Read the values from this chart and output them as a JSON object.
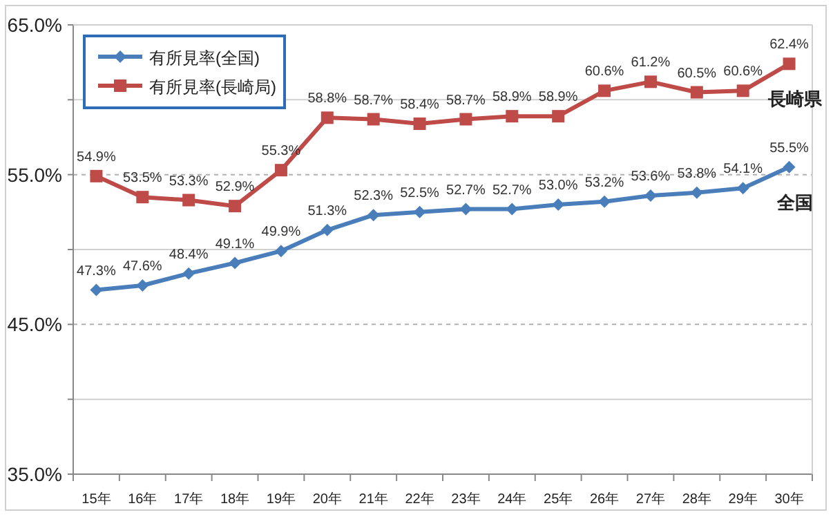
{
  "chart_data": {
    "type": "line",
    "categories": [
      "15年",
      "16年",
      "17年",
      "18年",
      "19年",
      "20年",
      "21年",
      "22年",
      "23年",
      "24年",
      "25年",
      "26年",
      "27年",
      "28年",
      "29年",
      "30年"
    ],
    "series": [
      {
        "name": "有所見率(全国)",
        "color": "#4a7ebb",
        "marker": "diamond",
        "values": [
          47.3,
          47.6,
          48.4,
          49.1,
          49.9,
          51.3,
          52.3,
          52.5,
          52.7,
          52.7,
          53.0,
          53.2,
          53.6,
          53.8,
          54.1,
          55.5
        ],
        "value_labels": [
          "47.3%",
          "47.6%",
          "48.4%",
          "49.1%",
          "49.9%",
          "51.3%",
          "52.3%",
          "52.5%",
          "52.7%",
          "52.7%",
          "53.0%",
          "53.2%",
          "53.6%",
          "53.8%",
          "54.1%",
          "55.5%"
        ]
      },
      {
        "name": "有所見率(長崎局)",
        "color": "#be4b48",
        "marker": "square",
        "values": [
          54.9,
          53.5,
          53.3,
          52.9,
          55.3,
          58.8,
          58.7,
          58.4,
          58.7,
          58.9,
          58.9,
          60.6,
          61.2,
          60.5,
          60.6,
          62.4
        ],
        "value_labels": [
          "54.9%",
          "53.5%",
          "53.3%",
          "52.9%",
          "55.3%",
          "58.8%",
          "58.7%",
          "58.4%",
          "58.7%",
          "58.9%",
          "58.9%",
          "60.6%",
          "61.2%",
          "60.5%",
          "60.6%",
          "62.4%"
        ]
      }
    ],
    "ylim": [
      35,
      65
    ],
    "yticks": [
      {
        "value": 35,
        "label": "35.0%"
      },
      {
        "value": 40,
        "label": null
      },
      {
        "value": 45,
        "label": "45.0%"
      },
      {
        "value": 50,
        "label": null
      },
      {
        "value": 55,
        "label": "55.0%"
      },
      {
        "value": 60,
        "label": null
      },
      {
        "value": 65,
        "label": "65.0%"
      }
    ],
    "grid": "y",
    "legend": "top left",
    "annotations": [
      {
        "text": "長崎県",
        "x": "30年",
        "y": 62.4
      },
      {
        "text": "全国",
        "x": "30年",
        "y": 55.5
      }
    ]
  }
}
